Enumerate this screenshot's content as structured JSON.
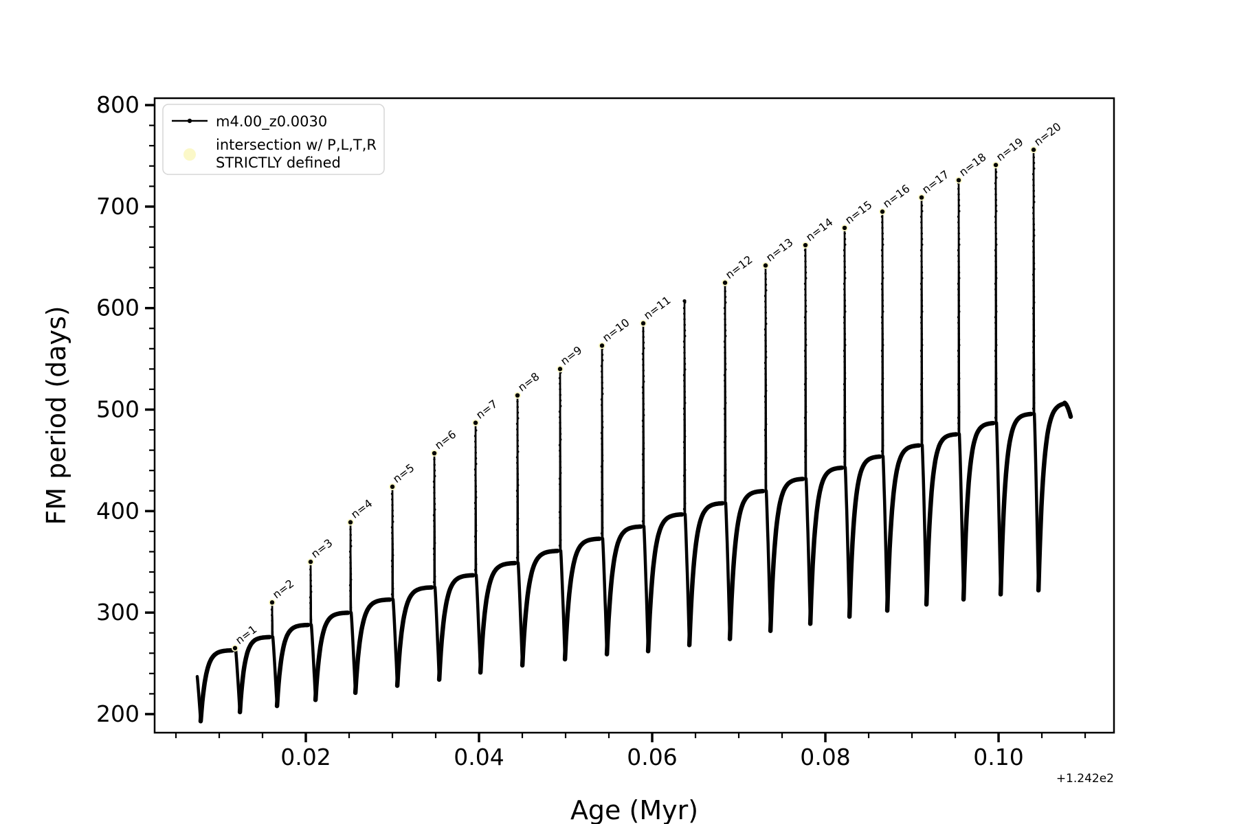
{
  "chart_data": {
    "type": "line",
    "title": "",
    "xlabel": "Age (Myr)",
    "ylabel": "FM period (days)",
    "x_offset_text": "+1.242e2",
    "xlim": [
      0.00254,
      0.11333
    ],
    "ylim": [
      181.7,
      806.8
    ],
    "grid": false,
    "xticks": {
      "major": [
        0.02,
        0.04,
        0.06,
        0.08,
        0.1
      ],
      "labels": [
        "0.02",
        "0.04",
        "0.06",
        "0.08",
        "0.10"
      ],
      "minor_step": 0.005
    },
    "yticks": {
      "major": [
        200,
        300,
        400,
        500,
        600,
        700,
        800
      ],
      "labels": [
        "200",
        "300",
        "400",
        "500",
        "600",
        "700",
        "800"
      ],
      "minor_step": 20
    },
    "legend": [
      {
        "label": "m4.00_z0.0030",
        "marker": "line-with-dot",
        "color": "#000000"
      },
      {
        "label_line1": "intersection w/ P,L,T,R",
        "label_line2": "STRICTLY defined",
        "marker": "circle",
        "color": "#fbf8c8"
      }
    ],
    "colors": {
      "curve": "#000000",
      "intersection_marker": "#fbf8c8",
      "legend_border": "#d5d5d5"
    },
    "series_name": "m4.00_z0.0030",
    "curve": {
      "start": {
        "x": 0.00746,
        "v": 237,
        "dip_x": 0.00786,
        "dip_v": 193
      },
      "cycles": [
        {
          "label": "n=1",
          "x": 0.011825,
          "tip": 265,
          "base": 263,
          "dip_after": 202
        },
        {
          "label": "n=2",
          "x": 0.016111,
          "tip": 310,
          "base": 276,
          "dip_after": 208
        },
        {
          "label": "n=3",
          "x": 0.020556,
          "tip": 350,
          "base": 288,
          "dip_after": 214
        },
        {
          "label": "n=4",
          "x": 0.025159,
          "tip": 389,
          "base": 300,
          "dip_after": 221
        },
        {
          "label": "n=5",
          "x": 0.03,
          "tip": 424,
          "base": 313,
          "dip_after": 228
        },
        {
          "label": "n=6",
          "x": 0.034841,
          "tip": 457,
          "base": 325,
          "dip_after": 234
        },
        {
          "label": "n=7",
          "x": 0.039603,
          "tip": 487,
          "base": 337,
          "dip_after": 241
        },
        {
          "label": "n=8",
          "x": 0.044444,
          "tip": 514,
          "base": 349,
          "dip_after": 248
        },
        {
          "label": "n=9",
          "x": 0.049365,
          "tip": 540,
          "base": 361,
          "dip_after": 254
        },
        {
          "label": "n=10",
          "x": 0.054206,
          "tip": 563,
          "base": 373,
          "dip_after": 259
        },
        {
          "label": "n=11",
          "x": 0.058968,
          "tip": 585,
          "base": 385,
          "dip_after": 262
        },
        {
          "label": null,
          "x": 0.06373,
          "tip": 607,
          "base": 397,
          "dip_after": 268
        },
        {
          "label": "n=12",
          "x": 0.068413,
          "tip": 625,
          "base": 408,
          "dip_after": 274
        },
        {
          "label": "n=13",
          "x": 0.073095,
          "tip": 642,
          "base": 420,
          "dip_after": 282
        },
        {
          "label": "n=14",
          "x": 0.077698,
          "tip": 662,
          "base": 432,
          "dip_after": 289
        },
        {
          "label": "n=15",
          "x": 0.082222,
          "tip": 679,
          "base": 443,
          "dip_after": 296
        },
        {
          "label": "n=16",
          "x": 0.086587,
          "tip": 695,
          "base": 454,
          "dip_after": 302
        },
        {
          "label": "n=17",
          "x": 0.091111,
          "tip": 709,
          "base": 465,
          "dip_after": 308
        },
        {
          "label": "n=18",
          "x": 0.095397,
          "tip": 726,
          "base": 476,
          "dip_after": 313
        },
        {
          "label": "n=19",
          "x": 0.099683,
          "tip": 741,
          "base": 487,
          "dip_after": 318
        },
        {
          "label": "n=20",
          "x": 0.104048,
          "tip": 756,
          "base": 496,
          "dip_after": 322
        }
      ],
      "final_arc": {
        "peak_x": 0.10754,
        "peak_v": 507,
        "end_x": 0.10833,
        "end_v": 493
      }
    }
  }
}
